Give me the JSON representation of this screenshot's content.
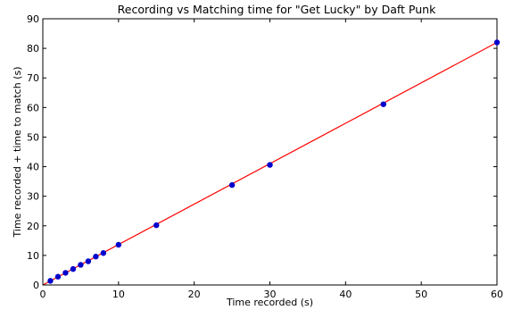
{
  "chart_data": {
    "type": "scatter",
    "title": "Recording vs Matching time for \"Get Lucky\" by Daft Punk",
    "xlabel": "Time recorded (s)",
    "ylabel": "Time recorded + time to match (s)",
    "xlim": [
      0,
      60
    ],
    "ylim": [
      0,
      90
    ],
    "xticks": [
      0,
      10,
      20,
      30,
      40,
      50,
      60
    ],
    "yticks": [
      0,
      10,
      20,
      30,
      40,
      50,
      60,
      70,
      80,
      90
    ],
    "grid": false,
    "series": [
      {
        "kind": "points",
        "color": "#0000cc",
        "x": [
          1,
          2,
          3,
          4,
          5,
          6,
          7,
          8,
          10,
          15,
          25,
          30,
          45,
          60
        ],
        "y": [
          1.4,
          2.8,
          4.1,
          5.4,
          6.8,
          8.0,
          9.6,
          10.8,
          13.6,
          20.2,
          33.8,
          40.6,
          61.1,
          82.0
        ]
      },
      {
        "kind": "fit-line",
        "color": "#ff0000",
        "x": [
          0,
          60
        ],
        "y": [
          0.0,
          82.0
        ]
      }
    ]
  }
}
